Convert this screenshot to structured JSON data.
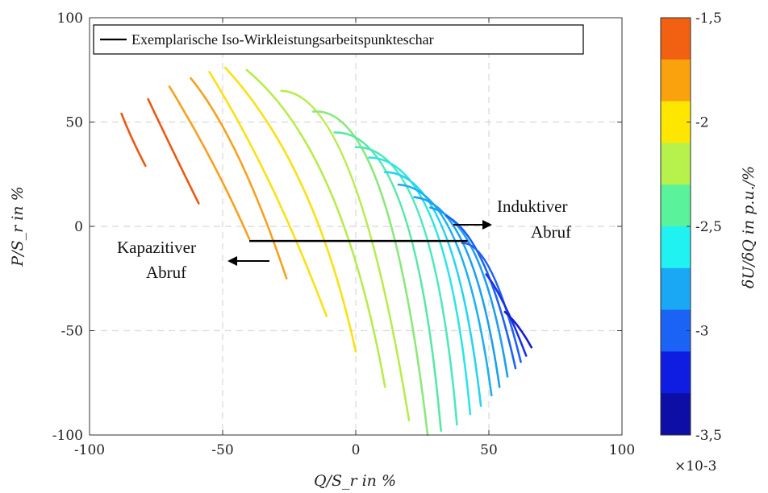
{
  "chart_data": {
    "type": "line",
    "xlabel": "Q/S_r in %",
    "ylabel": "P/S_r in %",
    "xlim": [
      -100,
      100
    ],
    "ylim": [
      -100,
      100
    ],
    "xticks": [
      -100,
      -50,
      0,
      50,
      100
    ],
    "yticks": [
      -100,
      -50,
      0,
      50,
      100
    ],
    "xtick_labels": [
      "-100",
      "-50",
      "0",
      "50",
      "100"
    ],
    "ytick_labels": [
      "-100",
      "-50",
      "0",
      "50",
      "100"
    ],
    "grid": true,
    "legend": {
      "position": "top-left",
      "label": "Exemplarische Iso-Wirkleistungsarbeitspunkteschar"
    },
    "series": [
      {
        "color": "#ea5a13",
        "points": [
          [
            -88,
            54
          ],
          [
            -84,
            42
          ],
          [
            -79,
            29
          ]
        ]
      },
      {
        "color": "#ea5a13",
        "points": [
          [
            -78,
            61
          ],
          [
            -69,
            37
          ],
          [
            -59,
            11
          ]
        ]
      },
      {
        "color": "#f7a11f",
        "points": [
          [
            -70,
            67
          ],
          [
            -54,
            31
          ],
          [
            -40,
            -6
          ]
        ]
      },
      {
        "color": "#f7a11f",
        "points": [
          [
            -62,
            71
          ],
          [
            -44,
            33
          ],
          [
            -26,
            -25
          ]
        ]
      },
      {
        "color": "#fbe014",
        "points": [
          [
            -55,
            74
          ],
          [
            -32,
            20
          ],
          [
            -11,
            -43
          ]
        ]
      },
      {
        "color": "#fbe014",
        "points": [
          [
            -49,
            76
          ],
          [
            -20,
            19
          ],
          [
            0,
            -60
          ]
        ]
      },
      {
        "color": "#b8ec4c",
        "points": [
          [
            -41,
            75
          ],
          [
            -10,
            18
          ],
          [
            11,
            -77
          ]
        ]
      },
      {
        "color": "#b8ec4c",
        "points": [
          [
            -28,
            65
          ],
          [
            -2,
            25
          ],
          [
            20,
            -93
          ]
        ]
      },
      {
        "color": "#8ce87c",
        "points": [
          [
            -16,
            55
          ],
          [
            9,
            18
          ],
          [
            27,
            -100
          ]
        ]
      },
      {
        "color": "#57e8a8",
        "points": [
          [
            -8,
            45
          ],
          [
            17,
            10
          ],
          [
            32,
            -98
          ]
        ]
      },
      {
        "color": "#4de8bd",
        "points": [
          [
            0,
            38
          ],
          [
            24,
            5
          ],
          [
            38,
            -95
          ]
        ]
      },
      {
        "color": "#2de4e8",
        "points": [
          [
            5,
            33
          ],
          [
            29,
            2
          ],
          [
            43,
            -90
          ]
        ]
      },
      {
        "color": "#25d4f0",
        "points": [
          [
            11,
            26
          ],
          [
            33,
            -2
          ],
          [
            47,
            -86
          ]
        ]
      },
      {
        "color": "#1eb0ef",
        "points": [
          [
            16,
            20
          ],
          [
            37,
            -6
          ],
          [
            51,
            -81
          ]
        ]
      },
      {
        "color": "#1c9ff0",
        "points": [
          [
            22,
            14
          ],
          [
            41,
            -10
          ],
          [
            54,
            -77
          ]
        ]
      },
      {
        "color": "#1c9ff0",
        "points": [
          [
            28,
            9
          ],
          [
            45,
            -14
          ],
          [
            57,
            -72
          ]
        ]
      },
      {
        "color": "#1e61f4",
        "points": [
          [
            34,
            5
          ],
          [
            48,
            -18
          ],
          [
            60,
            -68
          ]
        ]
      },
      {
        "color": "#1e61f4",
        "points": [
          [
            40,
            -8
          ],
          [
            51,
            -22
          ],
          [
            62,
            -65
          ]
        ]
      },
      {
        "color": "#1c2fe6",
        "points": [
          [
            49,
            -23
          ],
          [
            56,
            -38
          ],
          [
            64,
            -62
          ]
        ]
      },
      {
        "color": "#141fcf",
        "points": [
          [
            56,
            -41
          ],
          [
            61,
            -48
          ],
          [
            66,
            -58
          ]
        ]
      }
    ],
    "marker_line": {
      "x": [
        -40,
        42
      ],
      "y": [
        -7,
        -7
      ],
      "color": "#000000"
    },
    "annotations": [
      {
        "text_line1": "Kapazitiver",
        "text_line2": "Abruf",
        "arrow": "left"
      },
      {
        "text_line1": "Induktiver",
        "text_line2": "Abruf",
        "arrow": "right"
      }
    ],
    "colorbar": {
      "label": "δU/δQ in p.u./%",
      "range": [
        -3.5,
        -1.5
      ],
      "tick_labels": [
        "-1,5",
        "-2",
        "-2,5",
        "-3",
        "-3,5"
      ],
      "tick_values": [
        -1.5,
        -2,
        -2.5,
        -3,
        -3.5
      ],
      "multiplier": "×10-3",
      "colors_top_to_bottom": [
        "#f26012",
        "#faa20d",
        "#fde700",
        "#b6f24b",
        "#5bf29c",
        "#20f2f2",
        "#1aa7f4",
        "#1a63f5",
        "#0f1de3",
        "#0d0ea6"
      ]
    }
  }
}
